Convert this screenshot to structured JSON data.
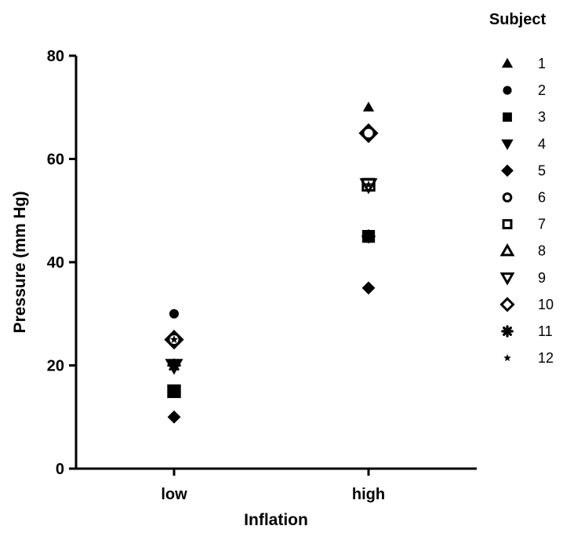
{
  "chart_data": {
    "type": "scatter",
    "title": "",
    "xlabel": "Inflation",
    "ylabel": "Pressure (mm Hg)",
    "categories": [
      "low",
      "high"
    ],
    "ylim": [
      0,
      80
    ],
    "yticks": [
      0,
      20,
      40,
      60,
      80
    ],
    "legend_title": "Subject",
    "legend_position": "right",
    "grid": false,
    "series": [
      {
        "name": "1",
        "marker": "triangle-up",
        "values": [
          null,
          70
        ]
      },
      {
        "name": "2",
        "marker": "circle",
        "values": [
          30,
          null
        ]
      },
      {
        "name": "3",
        "marker": "square",
        "values": [
          15,
          45
        ]
      },
      {
        "name": "4",
        "marker": "triangle-down",
        "values": [
          20,
          null
        ]
      },
      {
        "name": "5",
        "marker": "diamond",
        "values": [
          10,
          35
        ]
      },
      {
        "name": "6",
        "marker": "circle-open",
        "values": [
          25,
          65
        ]
      },
      {
        "name": "7",
        "marker": "square-open",
        "values": [
          15,
          55
        ]
      },
      {
        "name": "8",
        "marker": "triangle-up-open",
        "values": [
          null,
          null
        ]
      },
      {
        "name": "9",
        "marker": "triangle-down-open",
        "values": [
          20,
          55
        ]
      },
      {
        "name": "10",
        "marker": "diamond-open",
        "values": [
          25,
          65
        ]
      },
      {
        "name": "11",
        "marker": "asterisk",
        "values": [
          20,
          45
        ]
      },
      {
        "name": "12",
        "marker": "star",
        "values": [
          25,
          55
        ]
      }
    ]
  }
}
